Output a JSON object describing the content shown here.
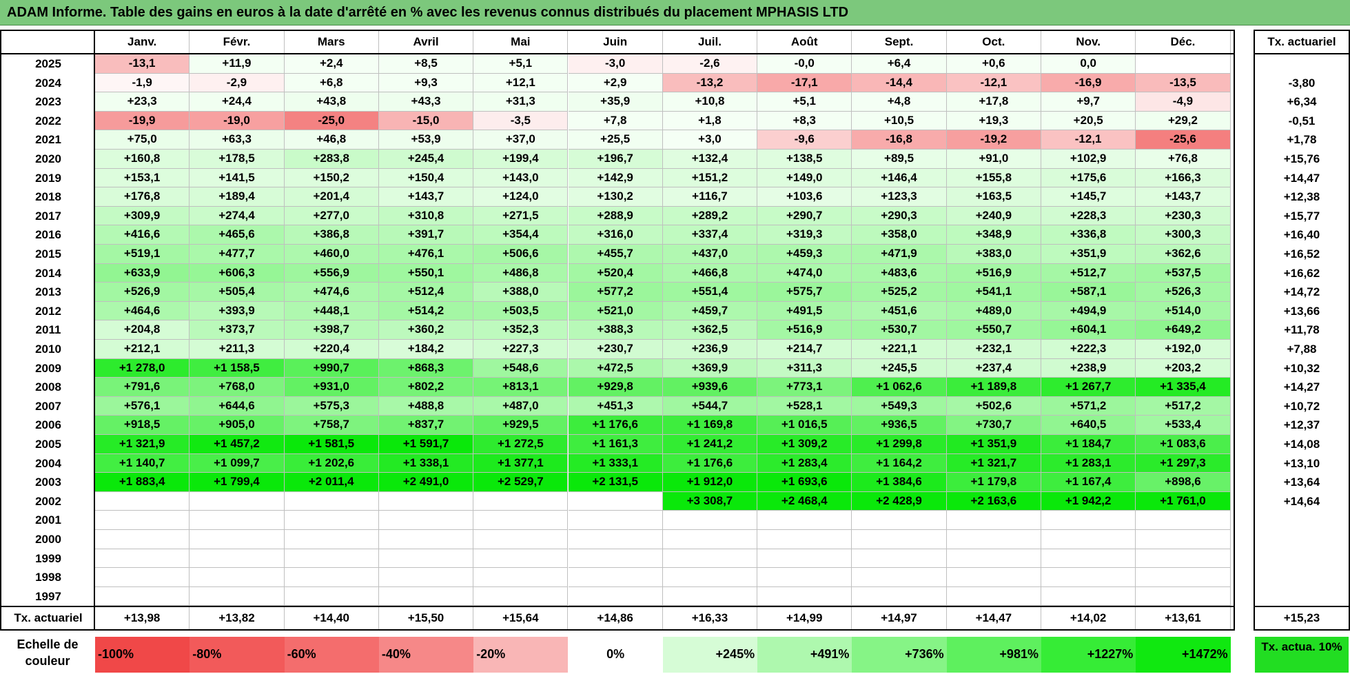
{
  "title": "ADAM Informe. Table des gains en euros à la date d'arrêté en % avec les revenus connus distribués du placement MPHASIS LTD",
  "months": [
    "Janv.",
    "Févr.",
    "Mars",
    "Avril",
    "Mai",
    "Juin",
    "Juil.",
    "Août",
    "Sept.",
    "Oct.",
    "Nov.",
    "Déc."
  ],
  "right_header": "Tx. actuariel",
  "rows": [
    {
      "year": "2025",
      "values": [
        "-13,1",
        "+11,9",
        "+2,4",
        "+8,5",
        "+5,1",
        "-3,0",
        "-2,6",
        "-0,0",
        "+6,4",
        "+0,6",
        "0,0",
        ""
      ],
      "tx": ""
    },
    {
      "year": "2024",
      "values": [
        "-1,9",
        "-2,9",
        "+6,8",
        "+9,3",
        "+12,1",
        "+2,9",
        "-13,2",
        "-17,1",
        "-14,4",
        "-12,1",
        "-16,9",
        "-13,5"
      ],
      "tx": "-3,80"
    },
    {
      "year": "2023",
      "values": [
        "+23,3",
        "+24,4",
        "+43,8",
        "+43,3",
        "+31,3",
        "+35,9",
        "+10,8",
        "+5,1",
        "+4,8",
        "+17,8",
        "+9,7",
        "-4,9"
      ],
      "tx": "+6,34"
    },
    {
      "year": "2022",
      "values": [
        "-19,9",
        "-19,0",
        "-25,0",
        "-15,0",
        "-3,5",
        "+7,8",
        "+1,8",
        "+8,3",
        "+10,5",
        "+19,3",
        "+20,5",
        "+29,2"
      ],
      "tx": "-0,51"
    },
    {
      "year": "2021",
      "values": [
        "+75,0",
        "+63,3",
        "+46,8",
        "+53,9",
        "+37,0",
        "+25,5",
        "+3,0",
        "-9,6",
        "-16,8",
        "-19,2",
        "-12,1",
        "-25,6"
      ],
      "tx": "+1,78"
    },
    {
      "year": "2020",
      "values": [
        "+160,8",
        "+178,5",
        "+283,8",
        "+245,4",
        "+199,4",
        "+196,7",
        "+132,4",
        "+138,5",
        "+89,5",
        "+91,0",
        "+102,9",
        "+76,8"
      ],
      "tx": "+15,76"
    },
    {
      "year": "2019",
      "values": [
        "+153,1",
        "+141,5",
        "+150,2",
        "+150,4",
        "+143,0",
        "+142,9",
        "+151,2",
        "+149,0",
        "+146,4",
        "+155,8",
        "+175,6",
        "+166,3"
      ],
      "tx": "+14,47"
    },
    {
      "year": "2018",
      "values": [
        "+176,8",
        "+189,4",
        "+201,4",
        "+143,7",
        "+124,0",
        "+130,2",
        "+116,7",
        "+103,6",
        "+123,3",
        "+163,5",
        "+145,7",
        "+143,7"
      ],
      "tx": "+12,38"
    },
    {
      "year": "2017",
      "values": [
        "+309,9",
        "+274,4",
        "+277,0",
        "+310,8",
        "+271,5",
        "+288,9",
        "+289,2",
        "+290,7",
        "+290,3",
        "+240,9",
        "+228,3",
        "+230,3"
      ],
      "tx": "+15,77"
    },
    {
      "year": "2016",
      "values": [
        "+416,6",
        "+465,6",
        "+386,8",
        "+391,7",
        "+354,4",
        "+316,0",
        "+337,4",
        "+319,3",
        "+358,0",
        "+348,9",
        "+336,8",
        "+300,3"
      ],
      "tx": "+16,40"
    },
    {
      "year": "2015",
      "values": [
        "+519,1",
        "+477,7",
        "+460,0",
        "+476,1",
        "+506,6",
        "+455,7",
        "+437,0",
        "+459,3",
        "+471,9",
        "+383,0",
        "+351,9",
        "+362,6"
      ],
      "tx": "+16,52"
    },
    {
      "year": "2014",
      "values": [
        "+633,9",
        "+606,3",
        "+556,9",
        "+550,1",
        "+486,8",
        "+520,4",
        "+466,8",
        "+474,0",
        "+483,6",
        "+516,9",
        "+512,7",
        "+537,5"
      ],
      "tx": "+16,62"
    },
    {
      "year": "2013",
      "values": [
        "+526,9",
        "+505,4",
        "+474,6",
        "+512,4",
        "+388,0",
        "+577,2",
        "+551,4",
        "+575,7",
        "+525,2",
        "+541,1",
        "+587,1",
        "+526,3"
      ],
      "tx": "+14,72"
    },
    {
      "year": "2012",
      "values": [
        "+464,6",
        "+393,9",
        "+448,1",
        "+514,2",
        "+503,5",
        "+521,0",
        "+459,7",
        "+491,5",
        "+451,6",
        "+489,0",
        "+494,9",
        "+514,0"
      ],
      "tx": "+13,66"
    },
    {
      "year": "2011",
      "values": [
        "+204,8",
        "+373,7",
        "+398,7",
        "+360,2",
        "+352,3",
        "+388,3",
        "+362,5",
        "+516,9",
        "+530,7",
        "+550,7",
        "+604,1",
        "+649,2"
      ],
      "tx": "+11,78"
    },
    {
      "year": "2010",
      "values": [
        "+212,1",
        "+211,3",
        "+220,4",
        "+184,2",
        "+227,3",
        "+230,7",
        "+236,9",
        "+214,7",
        "+221,1",
        "+232,1",
        "+222,3",
        "+192,0"
      ],
      "tx": "+7,88"
    },
    {
      "year": "2009",
      "values": [
        "+1 278,0",
        "+1 158,5",
        "+990,7",
        "+868,3",
        "+548,6",
        "+472,5",
        "+369,9",
        "+311,3",
        "+245,5",
        "+237,4",
        "+238,9",
        "+203,2"
      ],
      "tx": "+10,32"
    },
    {
      "year": "2008",
      "values": [
        "+791,6",
        "+768,0",
        "+931,0",
        "+802,2",
        "+813,1",
        "+929,8",
        "+939,6",
        "+773,1",
        "+1 062,6",
        "+1 189,8",
        "+1 267,7",
        "+1 335,4"
      ],
      "tx": "+14,27"
    },
    {
      "year": "2007",
      "values": [
        "+576,1",
        "+644,6",
        "+575,3",
        "+488,8",
        "+487,0",
        "+451,3",
        "+544,7",
        "+528,1",
        "+549,3",
        "+502,6",
        "+571,2",
        "+517,2"
      ],
      "tx": "+10,72"
    },
    {
      "year": "2006",
      "values": [
        "+918,5",
        "+905,0",
        "+758,7",
        "+837,7",
        "+929,5",
        "+1 176,6",
        "+1 169,8",
        "+1 016,5",
        "+936,5",
        "+730,7",
        "+640,5",
        "+533,4"
      ],
      "tx": "+12,37"
    },
    {
      "year": "2005",
      "values": [
        "+1 321,9",
        "+1 457,2",
        "+1 581,5",
        "+1 591,7",
        "+1 272,5",
        "+1 161,3",
        "+1 241,2",
        "+1 309,2",
        "+1 299,8",
        "+1 351,9",
        "+1 184,7",
        "+1 083,6"
      ],
      "tx": "+14,08"
    },
    {
      "year": "2004",
      "values": [
        "+1 140,7",
        "+1 099,7",
        "+1 202,6",
        "+1 338,1",
        "+1 377,1",
        "+1 333,1",
        "+1 176,6",
        "+1 283,4",
        "+1 164,2",
        "+1 321,7",
        "+1 283,1",
        "+1 297,3"
      ],
      "tx": "+13,10"
    },
    {
      "year": "2003",
      "values": [
        "+1 883,4",
        "+1 799,4",
        "+2 011,4",
        "+2 491,0",
        "+2 529,7",
        "+2 131,5",
        "+1 912,0",
        "+1 693,6",
        "+1 384,6",
        "+1 179,8",
        "+1 167,4",
        "+898,6"
      ],
      "tx": "+13,64"
    },
    {
      "year": "2002",
      "values": [
        "",
        "",
        "",
        "",
        "",
        "",
        "+3 308,7",
        "+2 468,4",
        "+2 428,9",
        "+2 163,6",
        "+1 942,2",
        "+1 761,0"
      ],
      "tx": "+14,64"
    },
    {
      "year": "2001",
      "values": [
        "",
        "",
        "",
        "",
        "",
        "",
        "",
        "",
        "",
        "",
        "",
        ""
      ],
      "tx": ""
    },
    {
      "year": "2000",
      "values": [
        "",
        "",
        "",
        "",
        "",
        "",
        "",
        "",
        "",
        "",
        "",
        ""
      ],
      "tx": ""
    },
    {
      "year": "1999",
      "values": [
        "",
        "",
        "",
        "",
        "",
        "",
        "",
        "",
        "",
        "",
        "",
        ""
      ],
      "tx": ""
    },
    {
      "year": "1998",
      "values": [
        "",
        "",
        "",
        "",
        "",
        "",
        "",
        "",
        "",
        "",
        "",
        ""
      ],
      "tx": ""
    },
    {
      "year": "1997",
      "values": [
        "",
        "",
        "",
        "",
        "",
        "",
        "",
        "",
        "",
        "",
        "",
        ""
      ],
      "tx": ""
    }
  ],
  "footer": {
    "label": "Tx. actuariel",
    "values": [
      "+13,98",
      "+13,82",
      "+14,40",
      "+15,50",
      "+15,64",
      "+14,86",
      "+16,33",
      "+14,99",
      "+14,97",
      "+14,47",
      "+14,02",
      "+13,61"
    ],
    "total": "+15,23"
  },
  "scale": {
    "label": "Echelle de couleur",
    "items": [
      {
        "text": "-100%",
        "color": "#f04848"
      },
      {
        "text": "-80%",
        "color": "#f25a5a"
      },
      {
        "text": "-60%",
        "color": "#f46d6d"
      },
      {
        "text": "-40%",
        "color": "#f68888"
      },
      {
        "text": "-20%",
        "color": "#f9b6b6"
      },
      {
        "text": "0%",
        "color": "#ffffff"
      },
      {
        "text": "+245%",
        "color": "#d6fcd6"
      },
      {
        "text": "+491%",
        "color": "#aef8ae"
      },
      {
        "text": "+736%",
        "color": "#86f486"
      },
      {
        "text": "+981%",
        "color": "#5ef05e"
      },
      {
        "text": "+1227%",
        "color": "#36ec36"
      },
      {
        "text": "+1472%",
        "color": "#10e810"
      }
    ],
    "tx_label": "Tx. actua. 10%",
    "tx_color": "#22dd22"
  }
}
